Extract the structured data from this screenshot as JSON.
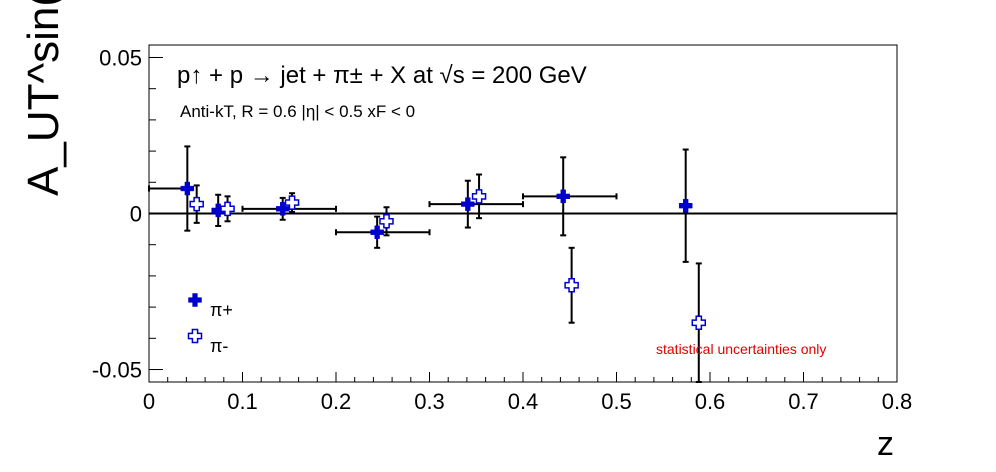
{
  "chart_data": {
    "type": "scatter",
    "title": "p↑ + p → jet + π± + X at √s = 200 GeV",
    "subtitle": "Anti-kT, R = 0.6   |η| < 0.5   xF < 0",
    "xlabel": "z",
    "ylabel": "A_UT^sin(φS-φh)",
    "xlim": [
      0,
      0.8
    ],
    "ylim": [
      -0.054,
      0.054
    ],
    "x_ticks": [
      "0",
      "0.1",
      "0.2",
      "0.3",
      "0.4",
      "0.5",
      "0.6",
      "0.7",
      "0.8"
    ],
    "y_ticks": [
      "-0.05",
      "0",
      "0.05"
    ],
    "reference_line_y": 0,
    "annotation": "statistical uncertainties only",
    "legend_position": "bottom-left",
    "series": [
      {
        "name": "π+",
        "marker": "filled-cross",
        "color": "#0000cc",
        "points": [
          {
            "x": 0.041,
            "y": 0.008,
            "xerr_low": 0.041,
            "xerr_high": 0.0,
            "yerr": 0.0135
          },
          {
            "x": 0.074,
            "y": 0.001,
            "xerr_low": 0.0,
            "xerr_high": 0.0,
            "yerr": 0.005
          },
          {
            "x": 0.143,
            "y": 0.0015,
            "xerr_low": 0.043,
            "xerr_high": 0.057,
            "yerr": 0.0035
          },
          {
            "x": 0.244,
            "y": -0.006,
            "xerr_low": 0.044,
            "xerr_high": 0.056,
            "yerr": 0.005
          },
          {
            "x": 0.341,
            "y": 0.003,
            "xerr_low": 0.041,
            "xerr_high": 0.059,
            "yerr": 0.0075
          },
          {
            "x": 0.443,
            "y": 0.0055,
            "xerr_low": 0.043,
            "xerr_high": 0.057,
            "yerr": 0.0125
          },
          {
            "x": 0.574,
            "y": 0.0025,
            "xerr_low": 0.0,
            "xerr_high": 0.0,
            "yerr": 0.018
          }
        ]
      },
      {
        "name": "π-",
        "marker": "open-cross",
        "color": "#0000cc",
        "points": [
          {
            "x": 0.051,
            "y": 0.003,
            "yerr": 0.006
          },
          {
            "x": 0.084,
            "y": 0.0015,
            "yerr": 0.004
          },
          {
            "x": 0.153,
            "y": 0.0035,
            "yerr": 0.003
          },
          {
            "x": 0.254,
            "y": -0.0025,
            "yerr": 0.0045
          },
          {
            "x": 0.353,
            "y": 0.0055,
            "yerr": 0.007
          },
          {
            "x": 0.452,
            "y": -0.023,
            "yerr": 0.012
          },
          {
            "x": 0.588,
            "y": -0.035,
            "yerr": 0.019
          }
        ]
      }
    ]
  }
}
